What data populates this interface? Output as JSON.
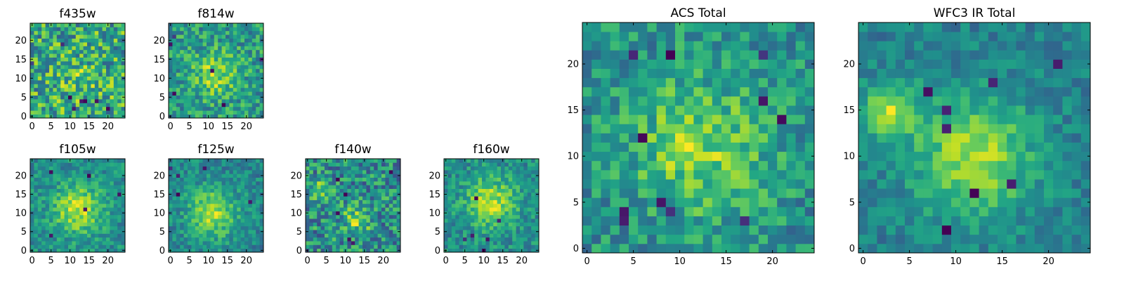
{
  "chart_data": [
    {
      "type": "heatmap",
      "title": "f435w",
      "grid": [
        25,
        25
      ],
      "x_ticks": [
        "0",
        "5",
        "10",
        "15",
        "20"
      ],
      "y_ticks": [
        "0",
        "5",
        "10",
        "15",
        "20"
      ],
      "colormap": "viridis",
      "pattern": {
        "seed": 11,
        "noise": 0.55,
        "blob_strength": 0.1,
        "blobs": [
          [
            12,
            10,
            4
          ]
        ],
        "dark_pixels": 8
      }
    },
    {
      "type": "heatmap",
      "title": "f814w",
      "grid": [
        25,
        25
      ],
      "x_ticks": [
        "0",
        "5",
        "10",
        "15",
        "20"
      ],
      "y_ticks": [
        "0",
        "5",
        "10",
        "15",
        "20"
      ],
      "colormap": "viridis",
      "pattern": {
        "seed": 23,
        "noise": 0.45,
        "blob_strength": 0.3,
        "blobs": [
          [
            12,
            11,
            4
          ]
        ],
        "dark_pixels": 6
      }
    },
    {
      "type": "heatmap",
      "title": "f105w",
      "grid": [
        25,
        25
      ],
      "x_ticks": [
        "0",
        "5",
        "10",
        "15",
        "20"
      ],
      "y_ticks": [
        "0",
        "5",
        "10",
        "15",
        "20"
      ],
      "colormap": "viridis",
      "pattern": {
        "seed": 37,
        "noise": 0.35,
        "blob_strength": 0.45,
        "blobs": [
          [
            12,
            11,
            4.5
          ]
        ],
        "dark_pixels": 5
      }
    },
    {
      "type": "heatmap",
      "title": "f125w",
      "grid": [
        25,
        25
      ],
      "x_ticks": [
        "0",
        "5",
        "10",
        "15",
        "20"
      ],
      "y_ticks": [
        "0",
        "5",
        "10",
        "15",
        "20"
      ],
      "colormap": "viridis",
      "pattern": {
        "seed": 41,
        "noise": 0.35,
        "blob_strength": 0.45,
        "blobs": [
          [
            11,
            10,
            4.5
          ]
        ],
        "dark_pixels": 5
      }
    },
    {
      "type": "heatmap",
      "title": "f140w",
      "grid": [
        25,
        25
      ],
      "x_ticks": [
        "0",
        "5",
        "10",
        "15",
        "20"
      ],
      "y_ticks": [
        "0",
        "5",
        "10",
        "15",
        "20"
      ],
      "colormap": "viridis",
      "pattern": {
        "seed": 53,
        "noise": 0.5,
        "blob_strength": 0.3,
        "blobs": [
          [
            13,
            8,
            2.5
          ],
          [
            4,
            16,
            2
          ]
        ],
        "dark_pixels": 6
      }
    },
    {
      "type": "heatmap",
      "title": "f160w",
      "grid": [
        25,
        25
      ],
      "x_ticks": [
        "0",
        "5",
        "10",
        "15",
        "20"
      ],
      "y_ticks": [
        "0",
        "5",
        "10",
        "15",
        "20"
      ],
      "colormap": "viridis",
      "pattern": {
        "seed": 67,
        "noise": 0.38,
        "blob_strength": 0.45,
        "blobs": [
          [
            12,
            13,
            4.5
          ]
        ],
        "dark_pixels": 6
      }
    },
    {
      "type": "heatmap",
      "title": "ACS Total",
      "grid": [
        25,
        25
      ],
      "x_ticks": [
        "0",
        "5",
        "10",
        "15",
        "20"
      ],
      "y_ticks": [
        "0",
        "5",
        "10",
        "15",
        "20"
      ],
      "colormap": "viridis",
      "pattern": {
        "seed": 79,
        "noise": 0.42,
        "blob_strength": 0.35,
        "blobs": [
          [
            12,
            11,
            5
          ]
        ],
        "dark_pixels": 11
      }
    },
    {
      "type": "heatmap",
      "title": "WFC3 IR Total",
      "grid": [
        25,
        25
      ],
      "x_ticks": [
        "0",
        "5",
        "10",
        "15",
        "20"
      ],
      "y_ticks": [
        "0",
        "5",
        "10",
        "15",
        "20"
      ],
      "colormap": "viridis",
      "pattern": {
        "seed": 97,
        "noise": 0.32,
        "blob_strength": 0.55,
        "blobs": [
          [
            12,
            10,
            4.5
          ],
          [
            3,
            15,
            2
          ]
        ],
        "dark_pixels": 8
      }
    }
  ]
}
